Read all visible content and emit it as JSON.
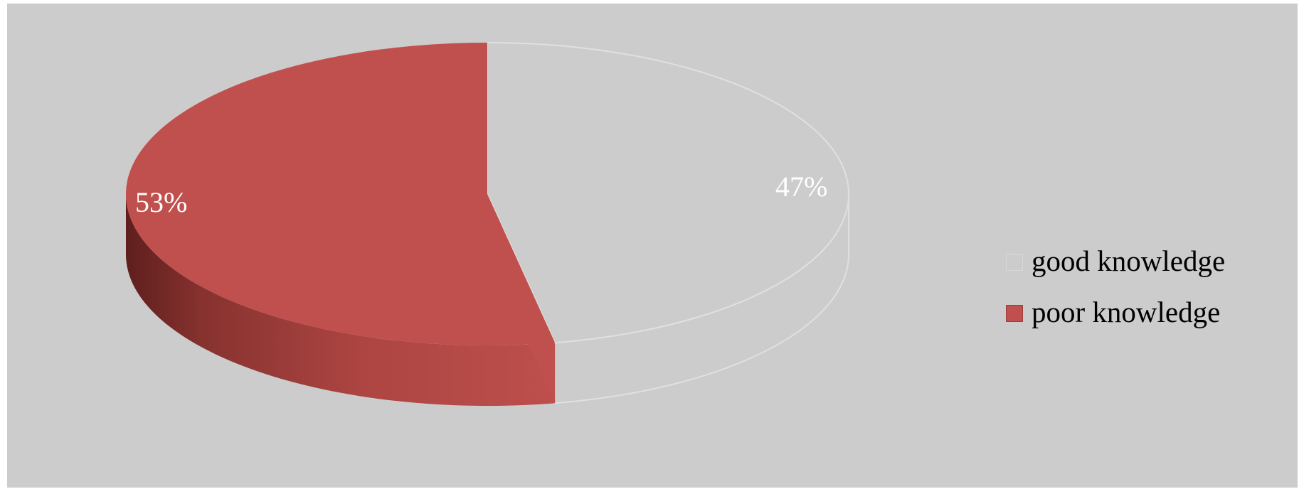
{
  "chart_data": {
    "type": "pie",
    "style": "3d",
    "title": "",
    "slices": [
      {
        "label": "good knowledge",
        "value": 47,
        "display": "47%",
        "color": "#cccccc",
        "edge": "#e0e0e0"
      },
      {
        "label": "poor knowledge",
        "value": 53,
        "display": "53%",
        "color": "#c0504d",
        "edge": "#a03c39"
      }
    ],
    "legend": {
      "position": "right"
    }
  }
}
